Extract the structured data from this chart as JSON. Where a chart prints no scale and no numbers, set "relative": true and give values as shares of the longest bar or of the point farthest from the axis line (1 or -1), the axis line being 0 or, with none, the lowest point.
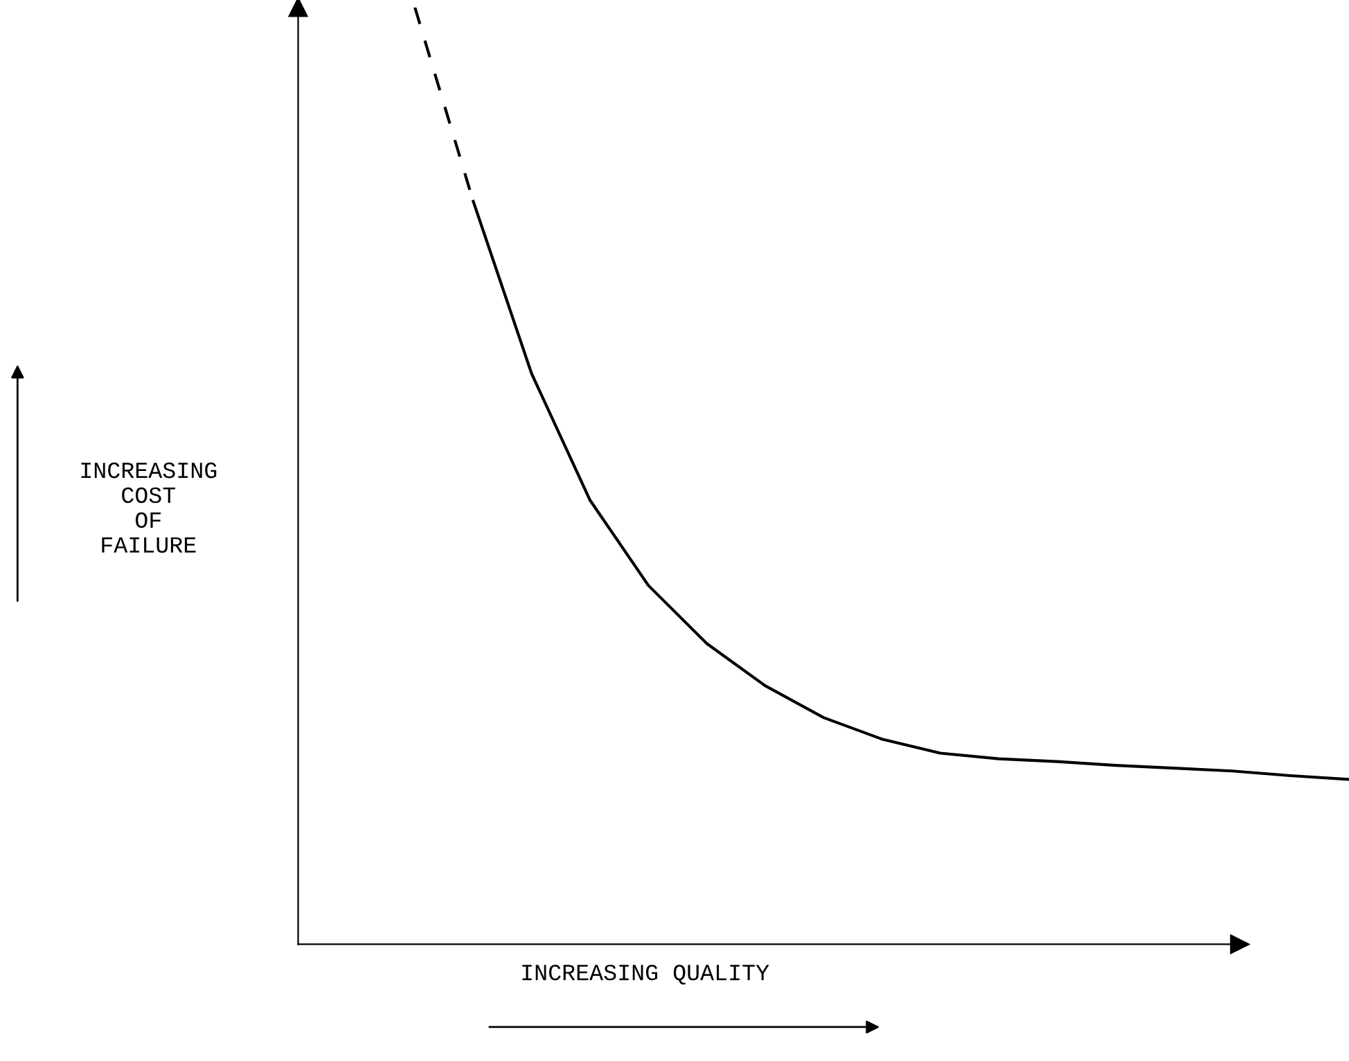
{
  "chart_data": {
    "type": "line",
    "relative": true,
    "tick_labels": false,
    "xlabel": "INCREASING QUALITY",
    "ylabel": "INCREASING\nCOST\nOF\nFAILURE",
    "categories": [
      null,
      null,
      null,
      null,
      null,
      null,
      null,
      null,
      null,
      null,
      null,
      null,
      null,
      null,
      null,
      null,
      null,
      null,
      null
    ],
    "series": [
      {
        "color": "#000000",
        "line_style": "dashed",
        "values": [
          null,
          null,
          1.0,
          0.793,
          null,
          null,
          null,
          null,
          null,
          null,
          null,
          null,
          null,
          null,
          null,
          null,
          null,
          null,
          null
        ]
      },
      {
        "color": "#000000",
        "line_style": "solid",
        "values": [
          null,
          null,
          null,
          0.793,
          0.609,
          0.474,
          0.383,
          0.321,
          0.276,
          0.242,
          0.219,
          0.204,
          0.198,
          0.195,
          0.191,
          0.188,
          0.185,
          0.18,
          0.176
        ]
      }
    ]
  }
}
